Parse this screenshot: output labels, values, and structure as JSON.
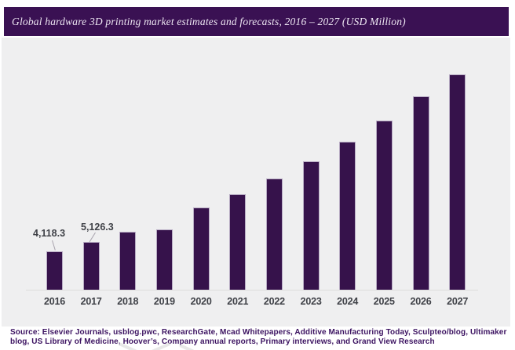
{
  "title_bar": {
    "text": "Global hardware 3D printing market estimates and forecasts, 2016 – 2027 (USD Million)",
    "bg_color": "#3A1153",
    "fg_color": "#EDE6F2"
  },
  "source": {
    "text": "Source: Elsevier Journals, usblog.pwc, ResearchGate, Mcad Whitepapers, Additive Manufacturing Today, Sculpteo/blog, Ultimaker blog, US Library of Medicine, Hoover’s, Company annual reports, Primary interviews, and Grand View Research",
    "color": "#3C1361"
  },
  "chart_data": {
    "type": "bar",
    "title": "Global hardware 3D printing market estimates and forecasts, 2016 – 2027 (USD Million)",
    "unit": "USD Million",
    "categories": [
      "2016",
      "2017",
      "2018",
      "2019",
      "2020",
      "2021",
      "2022",
      "2023",
      "2024",
      "2025",
      "2026",
      "2027"
    ],
    "values": [
      4118.3,
      5126.3,
      6250,
      6480,
      8830,
      10280,
      11930,
      13740,
      15840,
      18140,
      20710,
      23090
    ],
    "values_note": "2016 and 2017 are labeled on the chart; 2018–2027 estimated from bar heights",
    "data_labels": [
      {
        "category": "2016",
        "text": "4,118.3"
      },
      {
        "category": "2017",
        "text": "5,126.3"
      }
    ],
    "ylim": [
      0,
      23500
    ],
    "grid": false,
    "legend": "none",
    "bar_color": "#36124B",
    "plot_background": "#EFEFF0",
    "axis_color": "#DCDCDC",
    "tick_label_color": "#3F4147"
  }
}
